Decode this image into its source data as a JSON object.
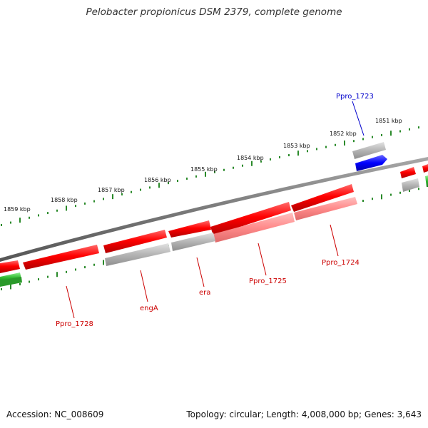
{
  "title": "Pelobacter propionicus DSM 2379, complete genome",
  "footer": {
    "accession": "Accession: NC_008609",
    "summary": "Topology: circular; Length: 4,008,000 bp; Genes: 3,643"
  },
  "colors": {
    "backbone": "#7a7a7a",
    "cds": "#ff0000",
    "cds_light": "#ff8a8a",
    "gray_feature": "#b4b4b4",
    "highlight_gene": "#0000ff",
    "green_feature": "#2eb82e",
    "tick": "#2a8a2a",
    "red_label": "#cc0000",
    "blue_label": "#0000cc"
  },
  "kbp_labels": [
    "1859 kbp",
    "1858 kbp",
    "1857 kbp",
    "1856 kbp",
    "1855 kbp",
    "1854 kbp",
    "1853 kbp",
    "1852 kbp",
    "1851 kbp"
  ],
  "gene_labels": [
    {
      "text": "Ppro_1723",
      "color": "blue"
    },
    {
      "text": "Ppro_1724",
      "color": "red"
    },
    {
      "text": "Ppro_1725",
      "color": "red"
    },
    {
      "text": "era",
      "color": "red"
    },
    {
      "text": "engA",
      "color": "red"
    },
    {
      "text": "Ppro_1728",
      "color": "red"
    }
  ]
}
